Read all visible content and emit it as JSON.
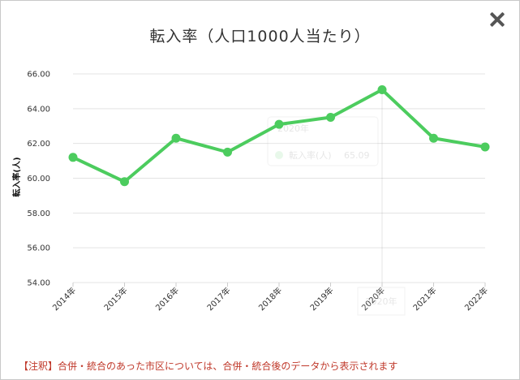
{
  "chart_data": {
    "type": "line",
    "title": "転入率（人口1000人当たり）",
    "ylabel": "転入率(人)",
    "xlabel": "",
    "categories": [
      "2014年",
      "2015年",
      "2016年",
      "2017年",
      "2018年",
      "2019年",
      "2020年",
      "2021年",
      "2022年"
    ],
    "series": [
      {
        "name": "転入率(人)",
        "values": [
          61.2,
          59.8,
          62.3,
          61.5,
          63.1,
          63.5,
          65.09,
          62.3,
          61.8
        ]
      }
    ],
    "ylim": [
      54,
      66
    ],
    "yticks": [
      "54.00",
      "56.00",
      "58.00",
      "60.00",
      "62.00",
      "64.00",
      "66.00"
    ],
    "grid": true,
    "color": "#4ccc5e",
    "tooltip": {
      "header": "2020年",
      "series": "転入率(人)",
      "value": "65.09"
    }
  },
  "note": "【注釈】合併・統合のあった市区については、合併・統合後のデータから表示されます",
  "close_icon": "close-icon"
}
